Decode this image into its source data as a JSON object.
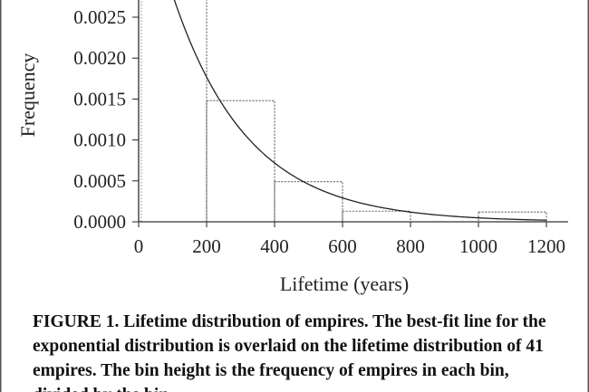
{
  "chart_data": {
    "type": "bar",
    "bin_edges": [
      0,
      200,
      400,
      600,
      800,
      1000,
      1200
    ],
    "values": [
      0.0031,
      0.00148,
      0.00049,
      0.00013,
      0.0,
      0.00012
    ],
    "xlabel": "Lifetime (years)",
    "ylabel": "Frequency",
    "xlim": [
      0,
      1200
    ],
    "ylim": [
      0,
      0.0027
    ],
    "x_ticks": [
      0,
      200,
      400,
      600,
      800,
      1000,
      1200
    ],
    "x_tick_labels": [
      "0",
      "200",
      "400",
      "600",
      "800",
      "1000",
      "1200"
    ],
    "y_ticks": [
      0,
      0.0005,
      0.001,
      0.0015,
      0.002,
      0.0025
    ],
    "y_tick_labels": [
      "0.0000",
      "0.0005",
      "0.0010",
      "0.0015",
      "0.0020",
      "0.0025"
    ],
    "fit_curve": {
      "type": "exponential",
      "amplitude": 0.00435,
      "rate": 0.0045
    },
    "grid": false
  },
  "caption": "FIGURE 1. Lifetime distribution of empires. The best-fit line for the exponential distribution is overlaid on the lifetime distribution of 41 empires. The bin height is the frequency of empires in each bin, divided by the bin"
}
